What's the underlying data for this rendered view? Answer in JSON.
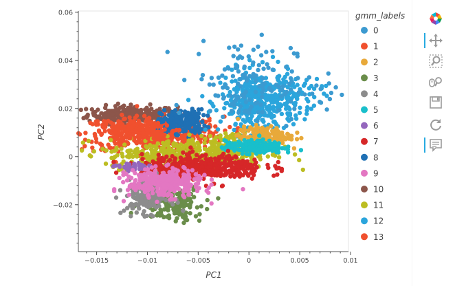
{
  "chart_data": {
    "type": "scatter",
    "xlabel": "PC1",
    "ylabel": "PC2",
    "xlim": [
      -0.0168,
      0.0098
    ],
    "ylim": [
      -0.0395,
      0.0605
    ],
    "x_ticks": [
      -0.015,
      -0.01,
      -0.005,
      0,
      0.005,
      0.01
    ],
    "x_tick_labels": [
      "−0.015",
      "−0.01",
      "−0.005",
      "0",
      "0.005",
      "0.01"
    ],
    "y_ticks": [
      -0.02,
      0,
      0.02,
      0.04,
      0.06
    ],
    "y_tick_labels": [
      "−0.02",
      "0",
      "0.02",
      "0.04",
      "0.06"
    ],
    "grid": false,
    "legend": {
      "title": "gmm_labels",
      "placement": "right",
      "entries": [
        {
          "label": "0",
          "color": "#3c9ad0"
        },
        {
          "label": "1",
          "color": "#f0502e"
        },
        {
          "label": "2",
          "color": "#e8a93a"
        },
        {
          "label": "3",
          "color": "#6a8d4a"
        },
        {
          "label": "4",
          "color": "#8c8c8c"
        },
        {
          "label": "5",
          "color": "#19bfcb"
        },
        {
          "label": "6",
          "color": "#9467bd"
        },
        {
          "label": "7",
          "color": "#d62728"
        },
        {
          "label": "8",
          "color": "#1f70b4"
        },
        {
          "label": "9",
          "color": "#e377c2"
        },
        {
          "label": "10",
          "color": "#8c564b"
        },
        {
          "label": "11",
          "color": "#bcbd22"
        },
        {
          "label": "12",
          "color": "#2ba5dc"
        },
        {
          "label": "13",
          "color": "#f0502e"
        }
      ]
    },
    "series": [
      {
        "name": "10",
        "color": "#8c564b",
        "clusters": [
          {
            "cx": -0.0115,
            "cy": 0.0175,
            "sx": 0.0022,
            "sy": 0.0018,
            "n": 260
          }
        ]
      },
      {
        "name": "13",
        "color": "#f0502e",
        "clusters": [
          {
            "cx": -0.0095,
            "cy": 0.0095,
            "sx": 0.0035,
            "sy": 0.0035,
            "n": 520
          }
        ]
      },
      {
        "name": "8",
        "color": "#1f70b4",
        "clusters": [
          {
            "cx": -0.0065,
            "cy": 0.0145,
            "sx": 0.0011,
            "sy": 0.0025,
            "n": 180
          }
        ]
      },
      {
        "name": "12",
        "color": "#2ba5dc",
        "clusters": [
          {
            "cx": 0.0008,
            "cy": 0.0225,
            "sx": 0.0018,
            "sy": 0.0065,
            "n": 380
          },
          {
            "cx": 0.0045,
            "cy": 0.026,
            "sx": 0.0014,
            "sy": 0.004,
            "n": 60
          }
        ]
      },
      {
        "name": "0",
        "color": "#3c9ad0",
        "clusters": [
          {
            "cx": -0.0005,
            "cy": 0.032,
            "sx": 0.0025,
            "sy": 0.009,
            "n": 120
          },
          {
            "cx": 0.0045,
            "cy": 0.024,
            "sx": 0.0025,
            "sy": 0.005,
            "n": 30
          }
        ]
      },
      {
        "name": "11",
        "color": "#bcbd22",
        "clusters": [
          {
            "cx": -0.006,
            "cy": 0.001,
            "sx": 0.004,
            "sy": 0.003,
            "n": 420
          },
          {
            "cx": -0.0015,
            "cy": 0.006,
            "sx": 0.0018,
            "sy": 0.002,
            "n": 80
          }
        ]
      },
      {
        "name": "2",
        "color": "#e8a93a",
        "clusters": [
          {
            "cx": 0.0015,
            "cy": 0.0085,
            "sx": 0.0013,
            "sy": 0.002,
            "n": 140
          }
        ]
      },
      {
        "name": "5",
        "color": "#19bfcb",
        "clusters": [
          {
            "cx": 0.0005,
            "cy": 0.004,
            "sx": 0.0014,
            "sy": 0.0013,
            "n": 220
          }
        ]
      },
      {
        "name": "7",
        "color": "#d62728",
        "clusters": [
          {
            "cx": -0.0045,
            "cy": -0.0045,
            "sx": 0.003,
            "sy": 0.0025,
            "n": 460
          }
        ]
      },
      {
        "name": "3",
        "color": "#6a8d4a",
        "clusters": [
          {
            "cx": -0.0075,
            "cy": -0.0195,
            "sx": 0.0015,
            "sy": 0.0035,
            "n": 160
          }
        ]
      },
      {
        "name": "4",
        "color": "#8c8c8c",
        "clusters": [
          {
            "cx": -0.01,
            "cy": -0.0165,
            "sx": 0.0011,
            "sy": 0.0035,
            "n": 170
          }
        ]
      },
      {
        "name": "6",
        "color": "#9467bd",
        "clusters": [
          {
            "cx": -0.0115,
            "cy": -0.0045,
            "sx": 0.0008,
            "sy": 0.0009,
            "n": 40
          }
        ]
      },
      {
        "name": "9",
        "color": "#e377c2",
        "clusters": [
          {
            "cx": -0.0083,
            "cy": -0.011,
            "sx": 0.0018,
            "sy": 0.0028,
            "n": 340
          }
        ]
      },
      {
        "name": "1",
        "color": "#f0502e",
        "clusters": [
          {
            "cx": -0.011,
            "cy": 0.011,
            "sx": 0.002,
            "sy": 0.0015,
            "n": 80
          }
        ]
      }
    ]
  },
  "toolbar": {
    "tools": [
      {
        "name": "bokeh-logo-icon",
        "active": false
      },
      {
        "name": "pan-tool-icon",
        "active": true
      },
      {
        "name": "box-zoom-tool-icon",
        "active": false
      },
      {
        "name": "wheel-zoom-tool-icon",
        "active": false
      },
      {
        "name": "save-tool-icon",
        "active": false
      },
      {
        "name": "reset-tool-icon",
        "active": false
      },
      {
        "name": "hover-tool-icon",
        "active": true
      }
    ]
  }
}
